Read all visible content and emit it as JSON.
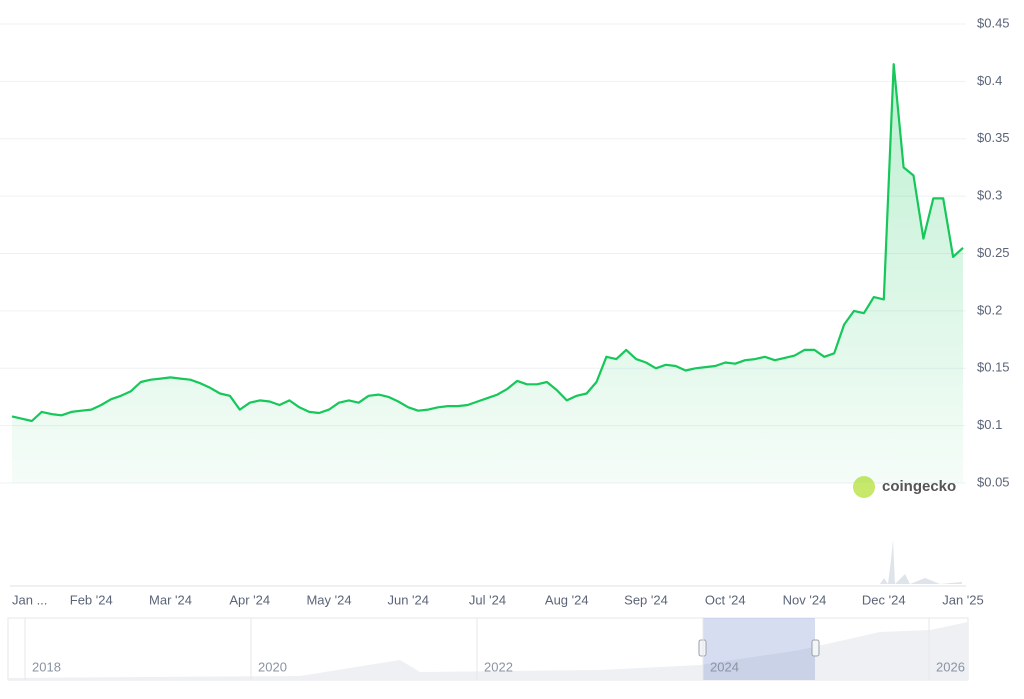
{
  "chart_data": {
    "type": "line",
    "categories": [
      "Jan ...",
      null,
      null,
      null,
      null,
      null,
      null,
      null,
      "Feb '24",
      null,
      null,
      null,
      null,
      null,
      null,
      null,
      "Mar '24",
      null,
      null,
      null,
      null,
      null,
      null,
      null,
      "Apr '24",
      null,
      null,
      null,
      null,
      null,
      null,
      null,
      "May '24",
      null,
      null,
      null,
      null,
      null,
      null,
      null,
      "Jun '24",
      null,
      null,
      null,
      null,
      null,
      null,
      null,
      "Jul '24",
      null,
      null,
      null,
      null,
      null,
      null,
      null,
      "Aug '24",
      null,
      null,
      null,
      null,
      null,
      null,
      null,
      "Sep '24",
      null,
      null,
      null,
      null,
      null,
      null,
      null,
      "Oct '24",
      null,
      null,
      null,
      null,
      null,
      null,
      null,
      "Nov '24",
      null,
      null,
      null,
      null,
      null,
      null,
      null,
      "Dec '24",
      null,
      null,
      null,
      null,
      null,
      null,
      null,
      "Jan '25"
    ],
    "values": [
      0.108,
      0.106,
      0.104,
      0.112,
      0.11,
      0.109,
      0.112,
      0.113,
      0.114,
      0.118,
      0.123,
      0.126,
      0.13,
      0.138,
      0.14,
      0.141,
      0.142,
      0.141,
      0.14,
      0.137,
      0.133,
      0.128,
      0.126,
      0.114,
      0.12,
      0.122,
      0.121,
      0.118,
      0.122,
      0.116,
      0.112,
      0.111,
      0.114,
      0.12,
      0.122,
      0.12,
      0.126,
      0.127,
      0.125,
      0.121,
      0.116,
      0.113,
      0.114,
      0.116,
      0.117,
      0.117,
      0.118,
      0.121,
      0.124,
      0.127,
      0.132,
      0.139,
      0.136,
      0.136,
      0.138,
      0.131,
      0.122,
      0.126,
      0.128,
      0.138,
      0.16,
      0.158,
      0.166,
      0.158,
      0.155,
      0.15,
      0.153,
      0.152,
      0.148,
      0.15,
      0.151,
      0.152,
      0.155,
      0.154,
      0.157,
      0.158,
      0.16,
      0.157,
      0.159,
      0.161,
      0.166,
      0.166,
      0.16,
      0.163,
      0.188,
      0.2,
      0.198,
      0.212,
      0.21,
      0.415,
      0.325,
      0.318,
      0.263,
      0.298,
      0.298,
      0.247,
      0.255
    ],
    "color": "#16c75a",
    "ylim": [
      0.05,
      0.45
    ],
    "yticks": [
      {
        "value": 0.05,
        "label": "$0.05"
      },
      {
        "value": 0.1,
        "label": "$0.1"
      },
      {
        "value": 0.15,
        "label": "$0.15"
      },
      {
        "value": 0.2,
        "label": "$0.2"
      },
      {
        "value": 0.25,
        "label": "$0.25"
      },
      {
        "value": 0.3,
        "label": "$0.3"
      },
      {
        "value": 0.35,
        "label": "$0.35"
      },
      {
        "value": 0.4,
        "label": "$0.4"
      },
      {
        "value": 0.45,
        "label": "$0.45"
      }
    ],
    "grid": true,
    "watermark": "coingecko",
    "navigator": {
      "labels": [
        "2018",
        "2020",
        "2022",
        "2024",
        "2026"
      ]
    }
  }
}
